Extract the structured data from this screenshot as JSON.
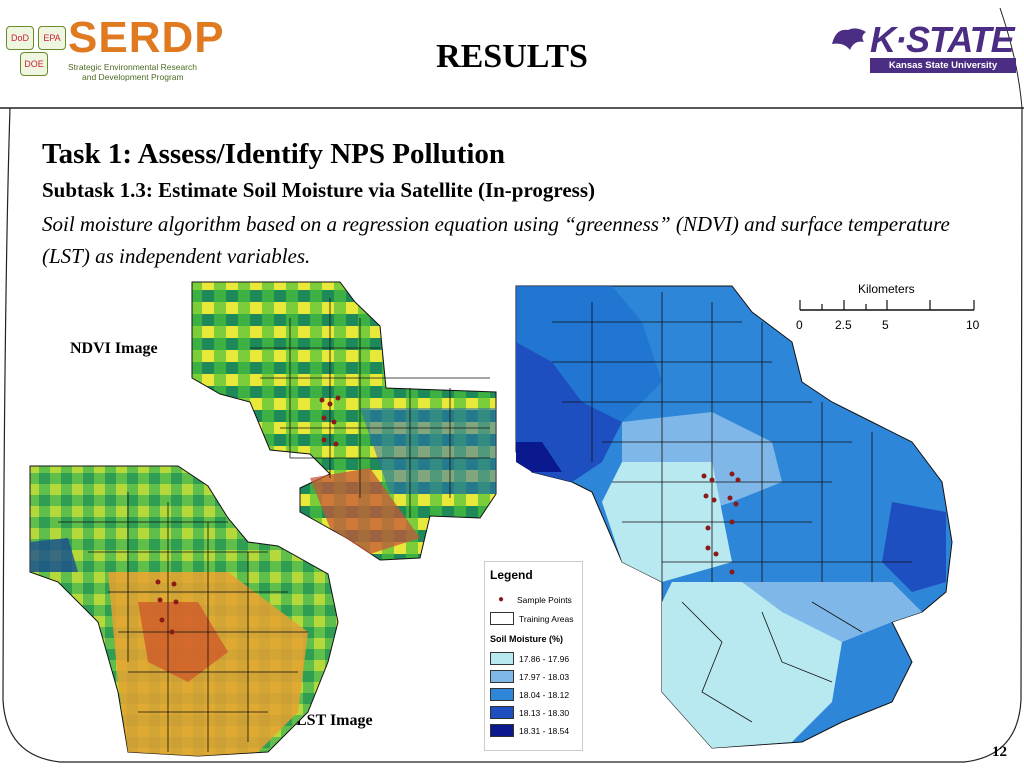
{
  "header": {
    "serdp": {
      "boxes": [
        "DoD",
        "EPA",
        "DOE"
      ],
      "wordmark": "SERDP",
      "subtitle_line1": "Strategic Environmental Research",
      "subtitle_line2": "and Development Program"
    },
    "title": "RESULTS",
    "ksu": {
      "wordmark": "K·STATE",
      "bar": "Kansas State University",
      "colors": {
        "purple": "#4b2e83"
      }
    }
  },
  "content": {
    "task_title": "Task 1:  Assess/Identify NPS Pollution",
    "subtask": "Subtask 1.3:  Estimate Soil Moisture via Satellite (In-progress)",
    "description": "Soil moisture algorithm based on a regression equation using “greenness” (NDVI) and surface temperature (LST) as independent variables.",
    "ndvi_label": "NDVI Image",
    "lst_label": "LST Image"
  },
  "legend": {
    "title": "Legend",
    "sample_points": "Sample Points",
    "training_areas": "Training Areas",
    "soil_title": "Soil Moisture (%)",
    "classes": [
      {
        "label": "17.86 - 17.96",
        "color": "#b8e8f0"
      },
      {
        "label": "17.97 - 18.03",
        "color": "#7fb8e8"
      },
      {
        "label": "18.04 - 18.12",
        "color": "#2e86d8"
      },
      {
        "label": "18.13 - 18.30",
        "color": "#1d4fc0"
      },
      {
        "label": "18.31 - 18.54",
        "color": "#0a1a8e"
      }
    ]
  },
  "scale_bar": {
    "unit": "Kilometers",
    "ticks": [
      "0",
      "2.5",
      "5",
      "10"
    ]
  },
  "page_number": "12"
}
